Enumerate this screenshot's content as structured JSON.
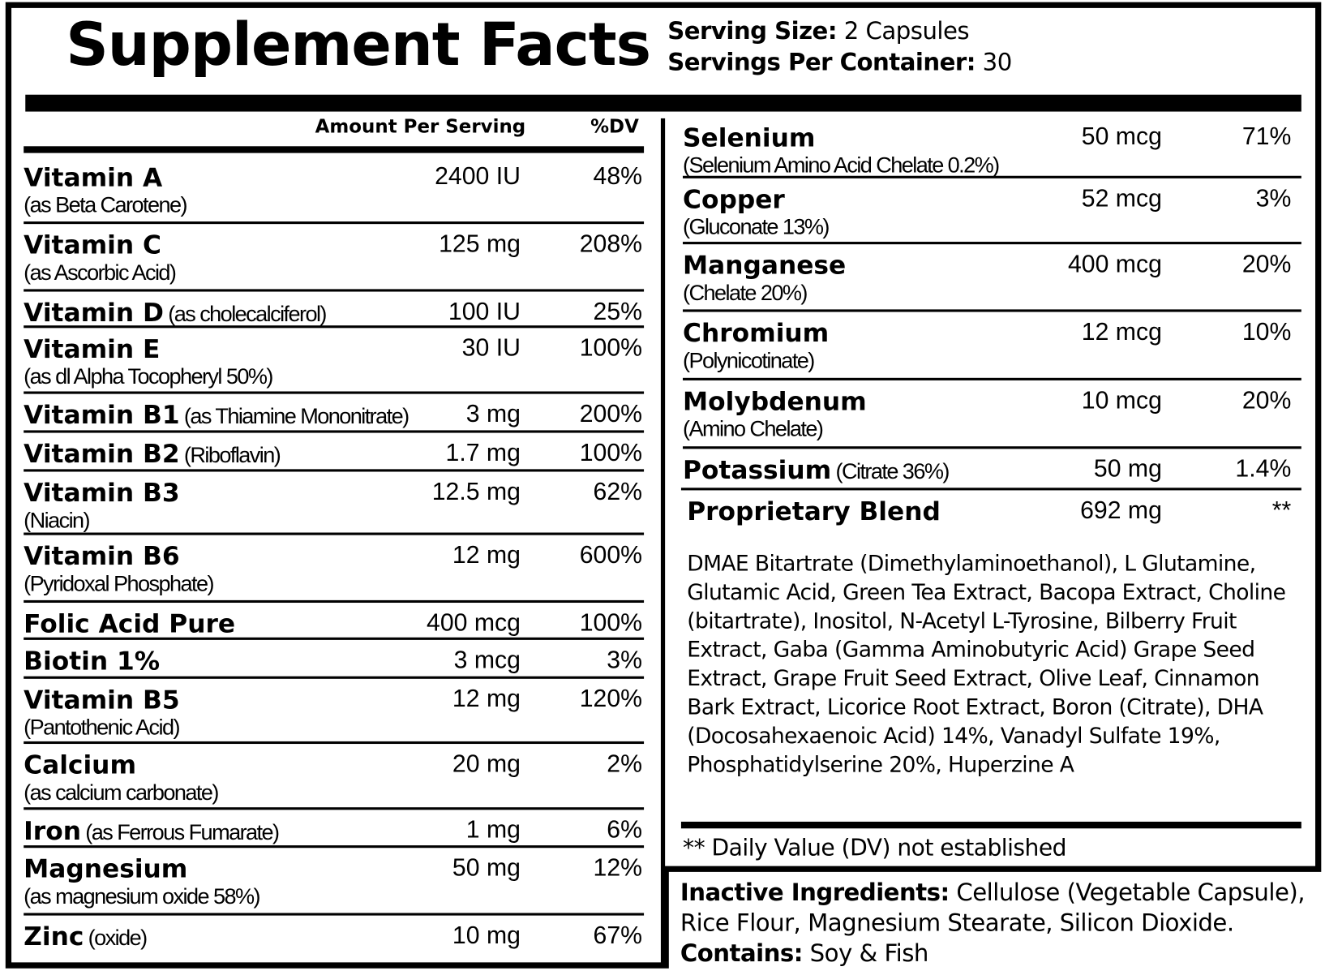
{
  "title": "Supplement Facts",
  "serving": [
    {
      "label": "Serving Size:",
      "value": "2 Capsules"
    },
    {
      "label": "Servings Per Container:",
      "value": "30"
    }
  ],
  "header": {
    "amount": "Amount Per Serving",
    "dv": "%DV"
  },
  "left_rows": [
    {
      "name": "Vitamin A",
      "source": "(as Beta Carotene)",
      "amount": "2400 IU",
      "dv": "48%"
    },
    {
      "name": "Vitamin C",
      "source": "(as Ascorbic Acid)",
      "amount": "125 mg",
      "dv": "208%"
    },
    {
      "name": "Vitamin D",
      "source": "(as cholecalciferol)",
      "amount": "100 IU",
      "dv": "25%"
    },
    {
      "name": "Vitamin E",
      "source": "(as dl Alpha Tocopheryl 50%)",
      "amount": "30 IU",
      "dv": "100%"
    },
    {
      "name": "Vitamin B1",
      "source": "(as Thiamine Mononitrate)",
      "amount": "3 mg",
      "dv": "200%"
    },
    {
      "name": "Vitamin B2",
      "source": "(Riboflavin)",
      "amount": "1.7 mg",
      "dv": "100%"
    },
    {
      "name": "Vitamin B3",
      "source": "(Niacin)",
      "amount": "12.5 mg",
      "dv": "62%"
    },
    {
      "name": "Vitamin B6",
      "source": "(Pyridoxal Phosphate)",
      "amount": "12 mg",
      "dv": "600%"
    },
    {
      "name": "Folic Acid Pure",
      "amount": "400 mcg",
      "dv": "100%"
    },
    {
      "name": "Biotin 1%",
      "amount": "3 mcg",
      "dv": "3%"
    },
    {
      "name": "Vitamin B5",
      "source": "(Pantothenic Acid)",
      "amount": "12 mg",
      "dv": "120%"
    },
    {
      "name": "Calcium",
      "source": "(as calcium carbonate)",
      "amount": "20 mg",
      "dv": "2%"
    },
    {
      "name": "Iron",
      "source": "(as Ferrous Fumarate)",
      "amount": "1 mg",
      "dv": "6%"
    },
    {
      "name": "Magnesium",
      "source": "(as magnesium oxide 58%)",
      "amount": "50 mg",
      "dv": "12%"
    },
    {
      "name": "Zinc",
      "source": "(oxide)",
      "amount": "10 mg",
      "dv": "67%"
    }
  ],
  "right_rows": [
    {
      "name": "Selenium",
      "source": "(Selenium Amino Acid Chelate 0.2%)",
      "amount": "50 mcg",
      "dv": "71%"
    },
    {
      "name": "Copper",
      "source": "(Gluconate 13%)",
      "amount": "52 mcg",
      "dv": "3%"
    },
    {
      "name": "Manganese",
      "source": "(Chelate 20%)",
      "amount": "400 mcg",
      "dv": "20%"
    },
    {
      "name": "Chromium",
      "source": "(Polynicotinate)",
      "amount": "12 mcg",
      "dv": "10%"
    },
    {
      "name": "Molybdenum",
      "source": "(Amino Chelate)",
      "amount": "10 mcg",
      "dv": "20%"
    },
    {
      "name": "Potassium",
      "source": "(Citrate 36%)",
      "amount": "50 mg",
      "dv": "1.4%"
    }
  ],
  "blend": {
    "name": "Proprietary Blend",
    "amount": "692 mg",
    "dv": "**",
    "ingredients": "DMAE Bitartrate (Dimethylaminoethanol), L Glutamine, Glutamic Acid, Green Tea Extract, Bacopa Extract, Choline (bitartrate), Inositol, N-Acetyl L-Tyrosine, Bilberry Fruit Extract, Gaba (Gamma Aminobutyric Acid) Grape Seed Extract, Grape Fruit Seed Extract, Olive Leaf, Cinnamon Bark Extract, Licorice Root Extract, Boron (Citrate), DHA (Docosahexaenoic Acid) 14%, Vanadyl Sulfate 19%, Phosphatidylserine 20%, Huperzine A"
  },
  "footnote": "** Daily Value (DV) not established",
  "inactive": {
    "label": "Inactive Ingredients:",
    "text": "Cellulose (Vegetable Capsule), Rice Flour, Magnesium Stearate, Silicon Dioxide."
  },
  "contains": {
    "label": "Contains:",
    "text": "Soy & Fish"
  }
}
